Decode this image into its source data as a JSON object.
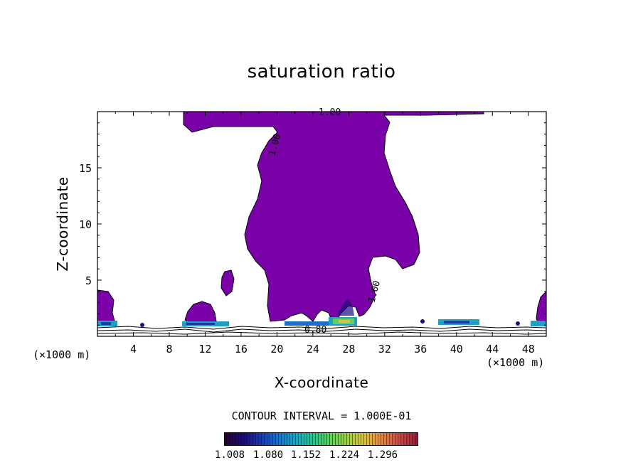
{
  "chart_data": {
    "type": "contour",
    "title": "saturation ratio",
    "xlabel": "X-coordinate",
    "ylabel": "Z-coordinate",
    "x_unit_left": "(×1000 m)",
    "x_unit_right": "(×1000 m)",
    "xlim": [
      0,
      50
    ],
    "ylim": [
      0,
      20
    ],
    "x_ticks": [
      4,
      8,
      12,
      16,
      20,
      24,
      28,
      32,
      36,
      40,
      44,
      48
    ],
    "y_ticks": [
      5,
      10,
      15
    ],
    "contour_labels": [
      "1.00",
      "1.00",
      "1.00",
      "0.80"
    ],
    "contour_interval": "CONTOUR INTERVAL = 1.000E-01",
    "colorbar": {
      "ticks": [
        "1.008",
        "1.080",
        "1.152",
        "1.224",
        "1.296"
      ],
      "colors": [
        "#2a003a",
        "#1c0a7a",
        "#1a3aa8",
        "#1e6ec8",
        "#20a0c0",
        "#30c090",
        "#60d060",
        "#a0d050",
        "#d8c048",
        "#e08848",
        "#c85048",
        "#a02038"
      ]
    },
    "fill_color": "#7a00a8",
    "grid": false
  }
}
